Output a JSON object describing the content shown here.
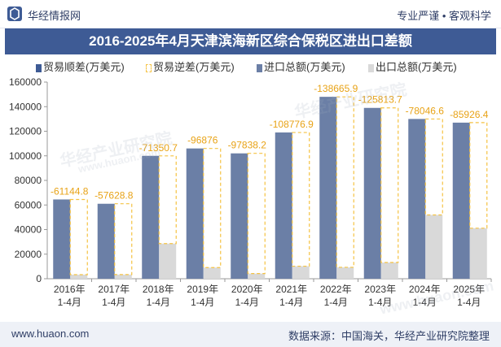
{
  "header": {
    "brand": "华经情报网",
    "tagline": "专业严谨 • 客观科学"
  },
  "chart_data": {
    "type": "bar",
    "title": "2016-2025年4月天津滨海新区综合保税区进出口差额",
    "categories": [
      "2016年\n1-4月",
      "2017年\n1-4月",
      "2018年\n1-4月",
      "2019年\n1-4月",
      "2020年\n1-4月",
      "2021年\n1-4月",
      "2022年\n1-4月",
      "2023年\n1-4月",
      "2024年\n1-4月",
      "2025年\n1-4月"
    ],
    "series": [
      {
        "name": "贸易顺差(万美元)",
        "values": [
          null,
          null,
          null,
          null,
          null,
          null,
          null,
          null,
          null,
          null
        ],
        "color": "#3e5b95"
      },
      {
        "name": "贸易逆差(万美元)",
        "values": [
          -61144.8,
          -57628.8,
          -71350.7,
          -96876,
          -97838.2,
          -108776.9,
          -138665.9,
          -125813.7,
          -78046.6,
          -85926.4
        ],
        "color": "#f5c242"
      },
      {
        "name": "进口总额(万美元)",
        "values": [
          64500,
          61000,
          100000,
          106000,
          102000,
          119000,
          148000,
          139000,
          130000,
          127000
        ],
        "color": "#6b7fa6"
      },
      {
        "name": "出口总额(万美元)",
        "values": [
          3300,
          3400,
          28600,
          9100,
          4200,
          10200,
          9300,
          13200,
          51900,
          41100
        ],
        "color": "#d9d9d9"
      }
    ],
    "yticks": [
      "0",
      "20000",
      "40000",
      "60000",
      "80000",
      "100000",
      "120000",
      "140000",
      "160000"
    ],
    "ylim": [
      0,
      160000
    ],
    "grid": false,
    "legend": "top"
  },
  "watermarks": [
    "华经产业研究院",
    "www.huaon.com"
  ],
  "footer": {
    "url": "www.huaon.com",
    "source": "数据来源：中国海关，华经产业研究院整理"
  },
  "colors": {
    "accent": "#3e5b95",
    "deficit": "#f5c242",
    "import": "#6b7fa6",
    "export": "#d9d9d9"
  }
}
